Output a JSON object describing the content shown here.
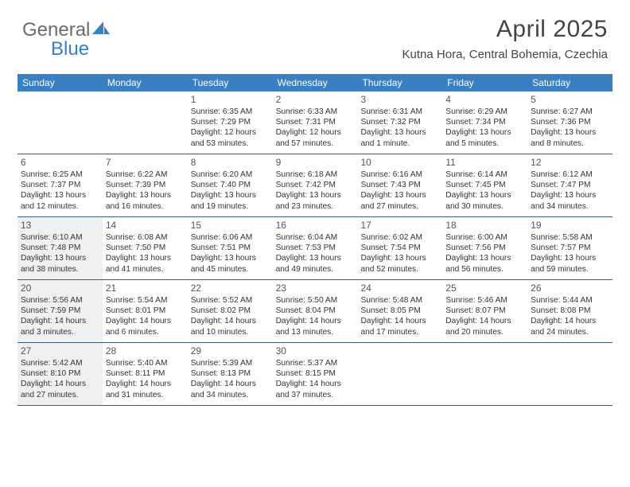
{
  "brand": {
    "part1": "General",
    "part2": "Blue"
  },
  "title": "April 2025",
  "location": "Kutna Hora, Central Bohemia, Czechia",
  "colors": {
    "header_bg": "#3a7fc4",
    "header_text": "#ffffff",
    "rule": "#3a5a88",
    "shade": "#eef0f2",
    "page_bg": "#ffffff",
    "text": "#333333",
    "logo_gray": "#6b6b6b",
    "logo_blue": "#3a7fc4"
  },
  "day_names": [
    "Sunday",
    "Monday",
    "Tuesday",
    "Wednesday",
    "Thursday",
    "Friday",
    "Saturday"
  ],
  "weeks": [
    [
      {
        "n": "",
        "sr": "",
        "ss": "",
        "dl": "",
        "shade": false,
        "empty": true
      },
      {
        "n": "",
        "sr": "",
        "ss": "",
        "dl": "",
        "shade": false,
        "empty": true
      },
      {
        "n": "1",
        "sr": "Sunrise: 6:35 AM",
        "ss": "Sunset: 7:29 PM",
        "dl": "Daylight: 12 hours and 53 minutes.",
        "shade": false
      },
      {
        "n": "2",
        "sr": "Sunrise: 6:33 AM",
        "ss": "Sunset: 7:31 PM",
        "dl": "Daylight: 12 hours and 57 minutes.",
        "shade": false
      },
      {
        "n": "3",
        "sr": "Sunrise: 6:31 AM",
        "ss": "Sunset: 7:32 PM",
        "dl": "Daylight: 13 hours and 1 minute.",
        "shade": false
      },
      {
        "n": "4",
        "sr": "Sunrise: 6:29 AM",
        "ss": "Sunset: 7:34 PM",
        "dl": "Daylight: 13 hours and 5 minutes.",
        "shade": false
      },
      {
        "n": "5",
        "sr": "Sunrise: 6:27 AM",
        "ss": "Sunset: 7:36 PM",
        "dl": "Daylight: 13 hours and 8 minutes.",
        "shade": false
      }
    ],
    [
      {
        "n": "6",
        "sr": "Sunrise: 6:25 AM",
        "ss": "Sunset: 7:37 PM",
        "dl": "Daylight: 13 hours and 12 minutes.",
        "shade": false
      },
      {
        "n": "7",
        "sr": "Sunrise: 6:22 AM",
        "ss": "Sunset: 7:39 PM",
        "dl": "Daylight: 13 hours and 16 minutes.",
        "shade": false
      },
      {
        "n": "8",
        "sr": "Sunrise: 6:20 AM",
        "ss": "Sunset: 7:40 PM",
        "dl": "Daylight: 13 hours and 19 minutes.",
        "shade": false
      },
      {
        "n": "9",
        "sr": "Sunrise: 6:18 AM",
        "ss": "Sunset: 7:42 PM",
        "dl": "Daylight: 13 hours and 23 minutes.",
        "shade": false
      },
      {
        "n": "10",
        "sr": "Sunrise: 6:16 AM",
        "ss": "Sunset: 7:43 PM",
        "dl": "Daylight: 13 hours and 27 minutes.",
        "shade": false
      },
      {
        "n": "11",
        "sr": "Sunrise: 6:14 AM",
        "ss": "Sunset: 7:45 PM",
        "dl": "Daylight: 13 hours and 30 minutes.",
        "shade": false
      },
      {
        "n": "12",
        "sr": "Sunrise: 6:12 AM",
        "ss": "Sunset: 7:47 PM",
        "dl": "Daylight: 13 hours and 34 minutes.",
        "shade": false
      }
    ],
    [
      {
        "n": "13",
        "sr": "Sunrise: 6:10 AM",
        "ss": "Sunset: 7:48 PM",
        "dl": "Daylight: 13 hours and 38 minutes.",
        "shade": true
      },
      {
        "n": "14",
        "sr": "Sunrise: 6:08 AM",
        "ss": "Sunset: 7:50 PM",
        "dl": "Daylight: 13 hours and 41 minutes.",
        "shade": false
      },
      {
        "n": "15",
        "sr": "Sunrise: 6:06 AM",
        "ss": "Sunset: 7:51 PM",
        "dl": "Daylight: 13 hours and 45 minutes.",
        "shade": false
      },
      {
        "n": "16",
        "sr": "Sunrise: 6:04 AM",
        "ss": "Sunset: 7:53 PM",
        "dl": "Daylight: 13 hours and 49 minutes.",
        "shade": false
      },
      {
        "n": "17",
        "sr": "Sunrise: 6:02 AM",
        "ss": "Sunset: 7:54 PM",
        "dl": "Daylight: 13 hours and 52 minutes.",
        "shade": false
      },
      {
        "n": "18",
        "sr": "Sunrise: 6:00 AM",
        "ss": "Sunset: 7:56 PM",
        "dl": "Daylight: 13 hours and 56 minutes.",
        "shade": false
      },
      {
        "n": "19",
        "sr": "Sunrise: 5:58 AM",
        "ss": "Sunset: 7:57 PM",
        "dl": "Daylight: 13 hours and 59 minutes.",
        "shade": false
      }
    ],
    [
      {
        "n": "20",
        "sr": "Sunrise: 5:56 AM",
        "ss": "Sunset: 7:59 PM",
        "dl": "Daylight: 14 hours and 3 minutes.",
        "shade": true
      },
      {
        "n": "21",
        "sr": "Sunrise: 5:54 AM",
        "ss": "Sunset: 8:01 PM",
        "dl": "Daylight: 14 hours and 6 minutes.",
        "shade": false
      },
      {
        "n": "22",
        "sr": "Sunrise: 5:52 AM",
        "ss": "Sunset: 8:02 PM",
        "dl": "Daylight: 14 hours and 10 minutes.",
        "shade": false
      },
      {
        "n": "23",
        "sr": "Sunrise: 5:50 AM",
        "ss": "Sunset: 8:04 PM",
        "dl": "Daylight: 14 hours and 13 minutes.",
        "shade": false
      },
      {
        "n": "24",
        "sr": "Sunrise: 5:48 AM",
        "ss": "Sunset: 8:05 PM",
        "dl": "Daylight: 14 hours and 17 minutes.",
        "shade": false
      },
      {
        "n": "25",
        "sr": "Sunrise: 5:46 AM",
        "ss": "Sunset: 8:07 PM",
        "dl": "Daylight: 14 hours and 20 minutes.",
        "shade": false
      },
      {
        "n": "26",
        "sr": "Sunrise: 5:44 AM",
        "ss": "Sunset: 8:08 PM",
        "dl": "Daylight: 14 hours and 24 minutes.",
        "shade": false
      }
    ],
    [
      {
        "n": "27",
        "sr": "Sunrise: 5:42 AM",
        "ss": "Sunset: 8:10 PM",
        "dl": "Daylight: 14 hours and 27 minutes.",
        "shade": true
      },
      {
        "n": "28",
        "sr": "Sunrise: 5:40 AM",
        "ss": "Sunset: 8:11 PM",
        "dl": "Daylight: 14 hours and 31 minutes.",
        "shade": false
      },
      {
        "n": "29",
        "sr": "Sunrise: 5:39 AM",
        "ss": "Sunset: 8:13 PM",
        "dl": "Daylight: 14 hours and 34 minutes.",
        "shade": false
      },
      {
        "n": "30",
        "sr": "Sunrise: 5:37 AM",
        "ss": "Sunset: 8:15 PM",
        "dl": "Daylight: 14 hours and 37 minutes.",
        "shade": false
      },
      {
        "n": "",
        "sr": "",
        "ss": "",
        "dl": "",
        "shade": false,
        "empty": true
      },
      {
        "n": "",
        "sr": "",
        "ss": "",
        "dl": "",
        "shade": false,
        "empty": true
      },
      {
        "n": "",
        "sr": "",
        "ss": "",
        "dl": "",
        "shade": false,
        "empty": true
      }
    ]
  ]
}
